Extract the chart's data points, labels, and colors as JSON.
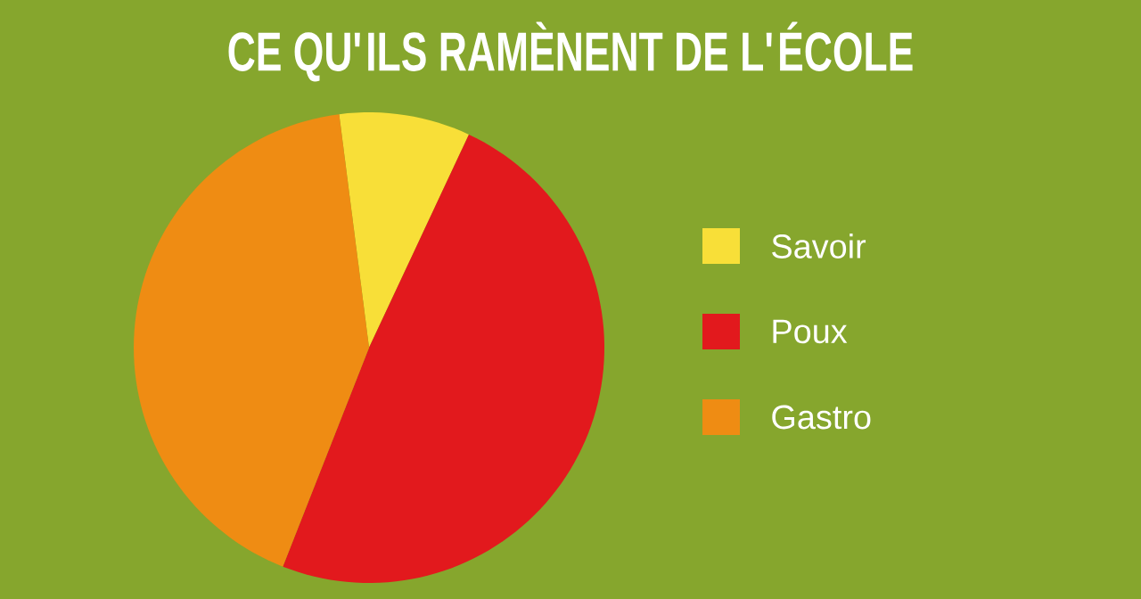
{
  "chart_data": {
    "type": "pie",
    "title": "CE QU'ILS RAMÈNENT DE L'ÉCOLE",
    "categories": [
      "Savoir",
      "Poux",
      "Gastro"
    ],
    "values": [
      9,
      49,
      42
    ],
    "colors": [
      "#f8df38",
      "#e2191d",
      "#ef8c13"
    ],
    "legend": "right"
  }
}
